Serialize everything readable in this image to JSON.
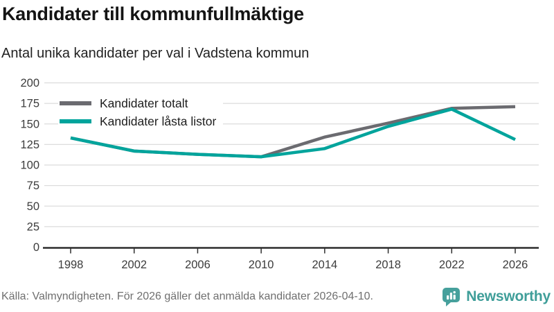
{
  "header": {
    "title": "Kandidater till kommunfullmäktige",
    "subtitle": "Antal unika kandidater per val i Vadstena kommun"
  },
  "chart_data": {
    "type": "line",
    "title": "Kandidater till kommunfullmäktige",
    "subtitle": "Antal unika kandidater per val i Vadstena kommun",
    "x": [
      1998,
      2002,
      2006,
      2010,
      2014,
      2018,
      2022,
      2026
    ],
    "series": [
      {
        "name": "Kandidater totalt",
        "color": "#6b6b70",
        "values": [
          133,
          117,
          113,
          110,
          134,
          151,
          169,
          171
        ]
      },
      {
        "name": "Kandidater låsta listor",
        "color": "#00a49c",
        "values": [
          133,
          117,
          113,
          110,
          120,
          147,
          168,
          131
        ]
      }
    ],
    "ylim": [
      0,
      200
    ],
    "yticks": [
      0,
      25,
      50,
      75,
      100,
      125,
      150,
      175,
      200
    ],
    "xlabel": "",
    "ylabel": "",
    "grid": true,
    "legend_position": "top-left",
    "colors": {
      "gridline": "#dcdcdc",
      "axis": "#2d2d2d",
      "tick_label": "#3c3c3c"
    }
  },
  "footer": {
    "source": "Källa: Valmyndigheten. För 2026 gäller det anmälda kandidater 2026-04-10.",
    "brand": "Newsworthy",
    "brand_color": "#3f9e99",
    "logo_color": "#46a09c"
  }
}
